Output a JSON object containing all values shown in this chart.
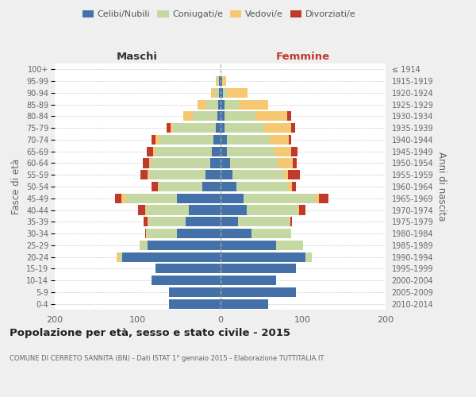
{
  "age_groups": [
    "100+",
    "95-99",
    "90-94",
    "85-89",
    "80-84",
    "75-79",
    "70-74",
    "65-69",
    "60-64",
    "55-59",
    "50-54",
    "45-49",
    "40-44",
    "35-39",
    "30-34",
    "25-29",
    "20-24",
    "15-19",
    "10-14",
    "5-9",
    "0-4"
  ],
  "birth_years": [
    "≤ 1914",
    "1915-1919",
    "1920-1924",
    "1925-1929",
    "1930-1934",
    "1935-1939",
    "1940-1944",
    "1945-1949",
    "1950-1954",
    "1955-1959",
    "1960-1964",
    "1965-1969",
    "1970-1974",
    "1975-1979",
    "1980-1984",
    "1985-1989",
    "1990-1994",
    "1995-1999",
    "2000-2004",
    "2005-2009",
    "2010-2014"
  ],
  "males": {
    "celibe": [
      0,
      1,
      1,
      2,
      3,
      5,
      8,
      10,
      12,
      18,
      22,
      52,
      38,
      42,
      52,
      88,
      118,
      78,
      83,
      62,
      62
    ],
    "coniugato": [
      0,
      2,
      5,
      15,
      30,
      52,
      65,
      68,
      72,
      68,
      52,
      62,
      52,
      45,
      38,
      8,
      4,
      0,
      0,
      0,
      0
    ],
    "vedovo": [
      0,
      2,
      5,
      10,
      12,
      3,
      5,
      3,
      2,
      2,
      1,
      5,
      1,
      1,
      0,
      1,
      3,
      0,
      0,
      0,
      0
    ],
    "divorziato": [
      0,
      0,
      0,
      0,
      0,
      5,
      5,
      8,
      8,
      8,
      8,
      8,
      8,
      5,
      1,
      0,
      0,
      0,
      0,
      0,
      0
    ]
  },
  "females": {
    "nubile": [
      0,
      2,
      3,
      5,
      5,
      5,
      8,
      8,
      12,
      15,
      20,
      28,
      32,
      22,
      38,
      68,
      103,
      92,
      68,
      92,
      58
    ],
    "coniugata": [
      0,
      0,
      5,
      18,
      38,
      48,
      52,
      58,
      58,
      62,
      62,
      88,
      62,
      62,
      48,
      32,
      8,
      0,
      0,
      0,
      0
    ],
    "vedova": [
      0,
      5,
      25,
      35,
      38,
      33,
      23,
      20,
      18,
      5,
      5,
      3,
      1,
      1,
      0,
      0,
      0,
      0,
      0,
      0,
      0
    ],
    "divorziata": [
      0,
      0,
      0,
      0,
      5,
      5,
      3,
      8,
      5,
      14,
      5,
      12,
      8,
      2,
      0,
      0,
      0,
      0,
      0,
      0,
      0
    ]
  },
  "colors": {
    "celibe": "#4472a8",
    "coniugato": "#c5d8a4",
    "vedovo": "#f5c871",
    "divorziato": "#c0392b"
  },
  "title": "Popolazione per età, sesso e stato civile - 2015",
  "subtitle": "COMUNE DI CERRETO SANNITA (BN) - Dati ISTAT 1° gennaio 2015 - Elaborazione TUTTITALIA.IT",
  "xlabel_left": "Maschi",
  "xlabel_right": "Femmine",
  "ylabel_left": "Fasce di età",
  "ylabel_right": "Anni di nascita",
  "xlim": 200,
  "bg_color": "#efefef",
  "plot_bg": "#ffffff"
}
